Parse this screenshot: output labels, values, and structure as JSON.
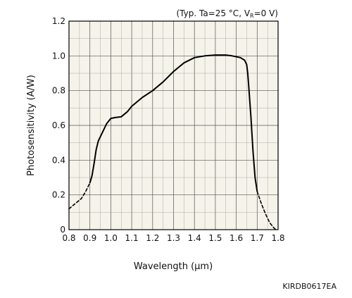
{
  "chart_data": {
    "type": "line",
    "xlabel": "Wavelength (µm)",
    "ylabel": "Photosensitivity (A/W)",
    "annotation": {
      "prefix": "(Typ. Ta=25 °C, V",
      "subscript": "R",
      "suffix": "=0 V)"
    },
    "code": "KIRDB0617EA",
    "xlim": [
      0.8,
      1.8
    ],
    "ylim": [
      0,
      1.2
    ],
    "x_ticks": [
      "0.8",
      "0.9",
      "1.0",
      "1.1",
      "1.2",
      "1.3",
      "1.4",
      "1.5",
      "1.6",
      "1.7",
      "1.8"
    ],
    "y_ticks": [
      "0",
      "0.2",
      "0.4",
      "0.6",
      "0.8",
      "1.0",
      "1.2"
    ],
    "grid": true,
    "plot_background": "#f5f3ea",
    "line_color": "#000000",
    "series": [
      {
        "style": "dashed",
        "x": [
          0.8,
          0.83,
          0.86,
          0.88,
          0.9
        ],
        "y": [
          0.12,
          0.15,
          0.18,
          0.22,
          0.27
        ]
      },
      {
        "style": "solid",
        "x": [
          0.9,
          0.91,
          0.92,
          0.93,
          0.94,
          0.96,
          0.98,
          1.0,
          1.02,
          1.05,
          1.08,
          1.1,
          1.15,
          1.2,
          1.25,
          1.3,
          1.35,
          1.4,
          1.45,
          1.5,
          1.55,
          1.58,
          1.62,
          1.64,
          1.65,
          1.655,
          1.66,
          1.67,
          1.68,
          1.69,
          1.7
        ],
        "y": [
          0.27,
          0.31,
          0.38,
          0.46,
          0.51,
          0.56,
          0.61,
          0.64,
          0.645,
          0.65,
          0.68,
          0.71,
          0.76,
          0.8,
          0.85,
          0.91,
          0.96,
          0.99,
          1.0,
          1.005,
          1.005,
          1.0,
          0.99,
          0.975,
          0.95,
          0.9,
          0.82,
          0.65,
          0.45,
          0.3,
          0.22
        ]
      },
      {
        "style": "dashed",
        "x": [
          1.7,
          1.72,
          1.74,
          1.76,
          1.78,
          1.79
        ],
        "y": [
          0.22,
          0.15,
          0.09,
          0.04,
          0.01,
          0.0
        ]
      }
    ]
  }
}
